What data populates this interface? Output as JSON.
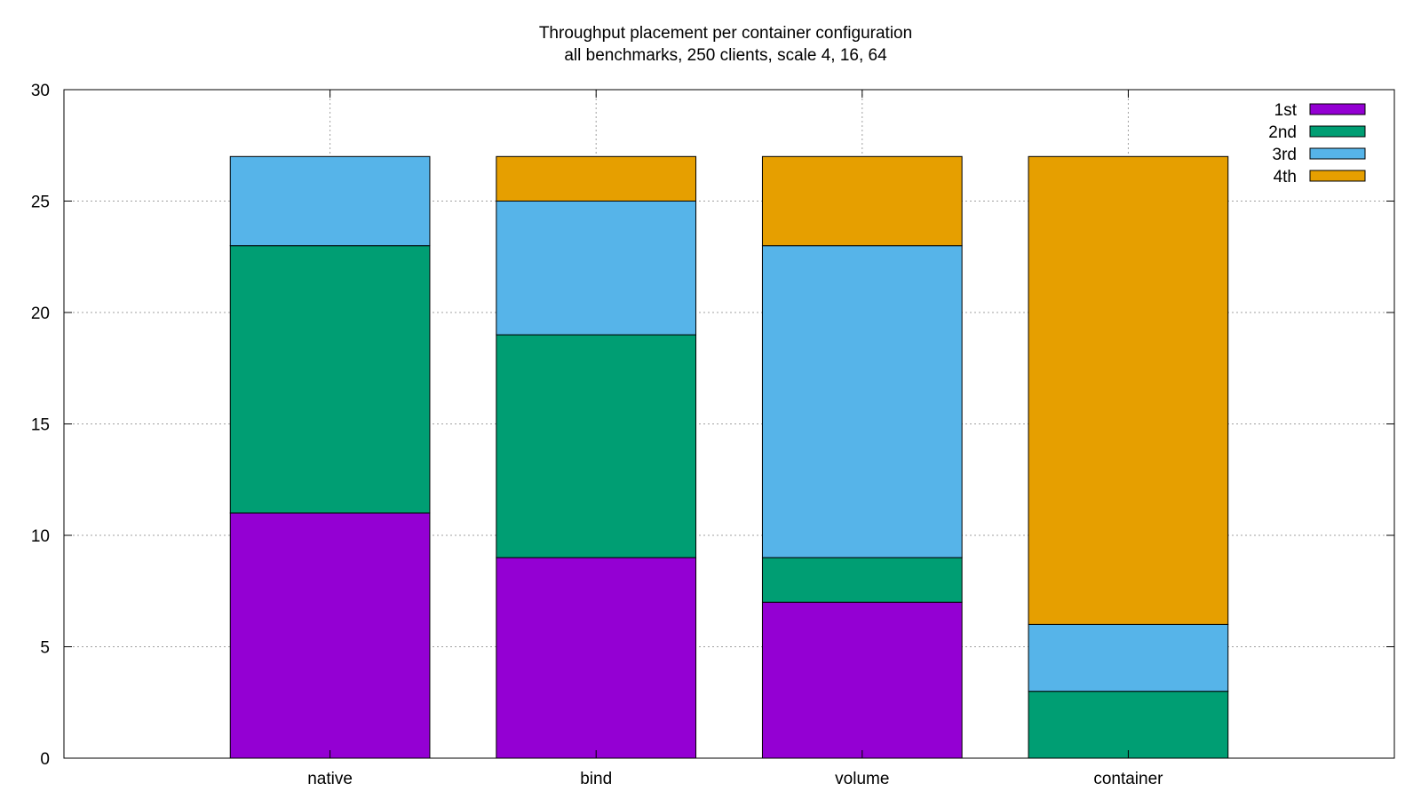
{
  "chart_data": {
    "type": "bar",
    "stacked": true,
    "title": "Throughput placement per container configuration",
    "subtitle": "all benchmarks, 250 clients, scale 4, 16, 64",
    "xlabel": "",
    "ylabel": "",
    "categories": [
      "native",
      "bind",
      "volume",
      "container"
    ],
    "ylim": [
      0,
      30
    ],
    "yticks": [
      0,
      5,
      10,
      15,
      20,
      25,
      30
    ],
    "grid": true,
    "legend_position": "top-right",
    "series": [
      {
        "name": "1st",
        "color": "#9400d3",
        "values": [
          11,
          9,
          7,
          0
        ]
      },
      {
        "name": "2nd",
        "color": "#009e73",
        "values": [
          12,
          10,
          2,
          3
        ]
      },
      {
        "name": "3rd",
        "color": "#56b4e9",
        "values": [
          4,
          6,
          14,
          3
        ]
      },
      {
        "name": "4th",
        "color": "#e69f00",
        "values": [
          0,
          2,
          4,
          21
        ]
      }
    ]
  }
}
